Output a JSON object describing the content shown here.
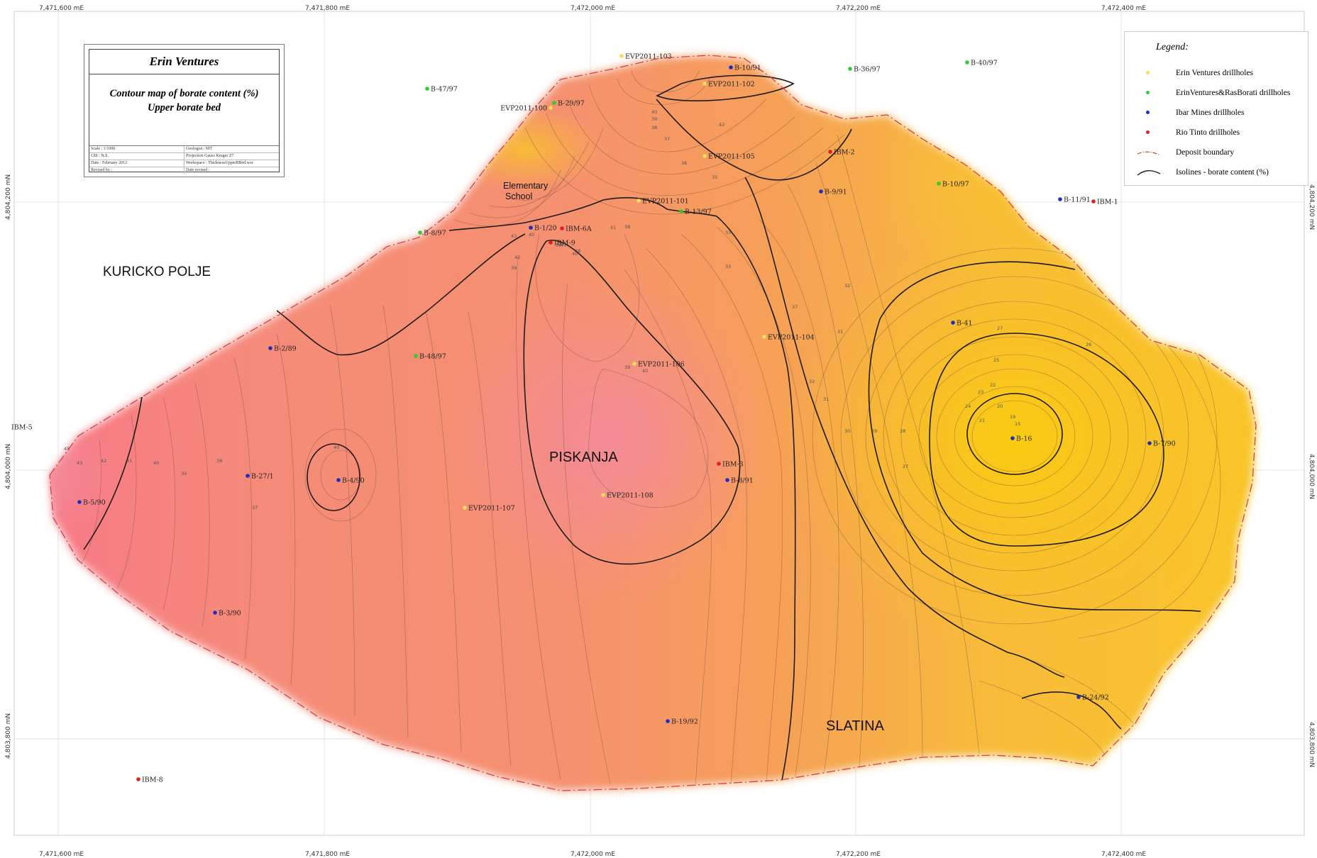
{
  "title_block": {
    "company": "Erin Ventures",
    "title_line1": "Contour map of borate content (%)",
    "title_line2": "Upper borate bed",
    "meta": [
      [
        "Scale :  1:1000",
        "Geologist : MT"
      ],
      [
        "GIS :  N.S.",
        "Projection  Gauss Kruger Z7"
      ],
      [
        "Date :  February 2012",
        "Workspace : ThicknessUpperBBed.wor"
      ],
      [
        "Revised by :",
        "Date revised :"
      ]
    ]
  },
  "legend": {
    "title": "Legend:",
    "items": [
      {
        "label": "Erin Ventures drillholes",
        "symbol": "dot",
        "color": "#f2e05a"
      },
      {
        "label": "ErinVentures&RasBorati drillholes",
        "symbol": "dot",
        "color": "#2ecc2e"
      },
      {
        "label": "Ibar Mines drillholes",
        "symbol": "dot",
        "color": "#1a2fc4"
      },
      {
        "label": "Rio Tinto drillholes",
        "symbol": "dot",
        "color": "#e02020"
      },
      {
        "label": "Deposit boundary",
        "symbol": "dashdot",
        "color": "#d84040"
      },
      {
        "label": "Isolines - borate content (%)",
        "symbol": "curve",
        "color": "#222222"
      }
    ]
  },
  "axes": {
    "easting_labels": [
      "7,471,600 mE",
      "7,471,800 mE",
      "7,472,000 mE",
      "7,472,200 mE",
      "7,472,400 mE"
    ],
    "northing_labels": [
      "4,804,200 mN",
      "4,804,000 mN",
      "4,803,800 mN"
    ]
  },
  "places": [
    {
      "name": "KURICKO POLJE"
    },
    {
      "name": "PISKANJA"
    },
    {
      "name": "SLATINA"
    },
    {
      "name": "Elementary\nSchool"
    }
  ],
  "drillholes": [
    {
      "label": "EVP2011-103",
      "type": "erin"
    },
    {
      "label": "B-47/97",
      "type": "erin_ras"
    },
    {
      "label": "B-29/97",
      "type": "erin_ras"
    },
    {
      "label": "EVP2011-100",
      "type": "erin"
    },
    {
      "label": "B-10/91",
      "type": "ibar"
    },
    {
      "label": "EVP2011-102",
      "type": "erin"
    },
    {
      "label": "B-36/97",
      "type": "erin_ras"
    },
    {
      "label": "B-40/97",
      "type": "erin_ras"
    },
    {
      "label": "EVP2011-105",
      "type": "erin"
    },
    {
      "label": "IBM-2",
      "type": "rio"
    },
    {
      "label": "B-10/97",
      "type": "erin_ras"
    },
    {
      "label": "B-9/91",
      "type": "ibar"
    },
    {
      "label": "EVP2011-101",
      "type": "erin"
    },
    {
      "label": "B-13/97",
      "type": "erin_ras"
    },
    {
      "label": "B-11/91",
      "type": "ibar"
    },
    {
      "label": "IBM-1",
      "type": "rio"
    },
    {
      "label": "B-8/97",
      "type": "erin_ras"
    },
    {
      "label": "B-1/20",
      "type": "ibar"
    },
    {
      "label": "IBM-6A",
      "type": "rio"
    },
    {
      "label": "IBM-9",
      "type": "rio"
    },
    {
      "label": "B-2/89",
      "type": "ibar"
    },
    {
      "label": "B-48/97",
      "type": "erin_ras"
    },
    {
      "label": "EVP2011-104",
      "type": "erin"
    },
    {
      "label": "B-41",
      "type": "ibar"
    },
    {
      "label": "EVP2011-106",
      "type": "erin"
    },
    {
      "label": "IBM-5",
      "type": "none"
    },
    {
      "label": "B-16",
      "type": "ibar"
    },
    {
      "label": "B-7/90",
      "type": "ibar"
    },
    {
      "label": "B-5/90",
      "type": "ibar"
    },
    {
      "label": "B-27/1",
      "type": "ibar"
    },
    {
      "label": "B-4/90",
      "type": "ibar"
    },
    {
      "label": "EVP2011-107",
      "type": "erin"
    },
    {
      "label": "EVP2011-108",
      "type": "erin"
    },
    {
      "label": "IBM-3",
      "type": "rio"
    },
    {
      "label": "B-8/91",
      "type": "ibar"
    },
    {
      "label": "B-3/90",
      "type": "ibar"
    },
    {
      "label": "B-19/92",
      "type": "ibar"
    },
    {
      "label": "B-24/92",
      "type": "ibar"
    },
    {
      "label": "IBM-8",
      "type": "rio"
    }
  ],
  "contour_values": [
    "45",
    "43",
    "42",
    "41",
    "40",
    "39",
    "38",
    "37",
    "36",
    "35",
    "34",
    "33",
    "32",
    "31",
    "30",
    "29",
    "28",
    "27",
    "26",
    "25",
    "24",
    "23",
    "22",
    "21",
    "20",
    "19",
    "15"
  ],
  "colors": {
    "high": "#f2858a",
    "mid": "#f6a060",
    "low": "#f8c020",
    "boundary": "#d84040",
    "erin": "#f2e05a",
    "erin_ras": "#2ecc2e",
    "ibar": "#1a2fc4",
    "rio": "#e02020"
  }
}
